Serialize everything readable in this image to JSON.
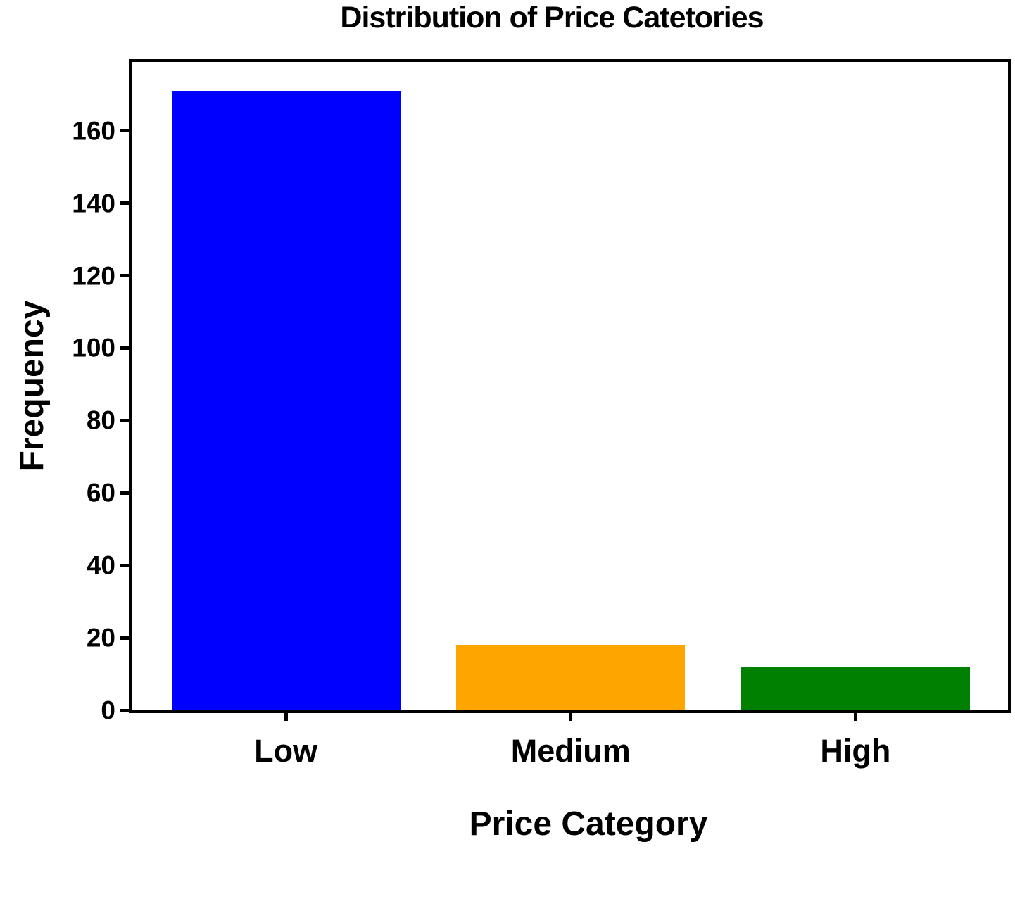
{
  "chart_data": {
    "type": "bar",
    "title": "Distribution of Price Catetories",
    "xlabel": "Price Category",
    "ylabel": "Frequency",
    "categories": [
      "Low",
      "Medium",
      "High"
    ],
    "values": [
      171,
      18,
      12
    ],
    "bar_colors": [
      "#0000ff",
      "#ffa500",
      "#008000"
    ],
    "yticks": [
      0,
      20,
      40,
      60,
      80,
      100,
      120,
      140,
      160
    ],
    "ylim": [
      0,
      179
    ],
    "grid": false,
    "legend": "none",
    "text_color": "#000000",
    "spine_color": "#000000",
    "background_color": "#ffffff"
  }
}
